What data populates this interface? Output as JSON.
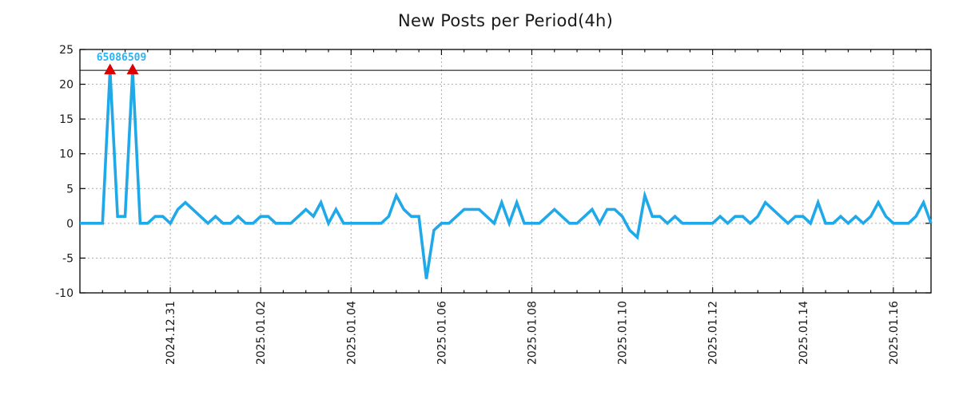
{
  "title": "New Posts per Period(4h)",
  "chart_data": {
    "type": "line",
    "title": "New Posts per Period(4h)",
    "x_start": "2024.12.29 00:00",
    "period_hours": 4,
    "x_total_days": 18.8333,
    "values": [
      0,
      0,
      0,
      0,
      22,
      1,
      1,
      22,
      0,
      0,
      1,
      1,
      0,
      2,
      3,
      2,
      1,
      0,
      1,
      0,
      0,
      1,
      0,
      0,
      1,
      1,
      0,
      0,
      0,
      1,
      2,
      1,
      3,
      0,
      2,
      0,
      0,
      0,
      0,
      0,
      0,
      1,
      4,
      2,
      1,
      1,
      -8,
      -1,
      0,
      0,
      1,
      2,
      2,
      2,
      1,
      0,
      3,
      0,
      3,
      0,
      0,
      0,
      1,
      2,
      1,
      0,
      0,
      1,
      2,
      0,
      2,
      2,
      1,
      -1,
      -2,
      4,
      1,
      1,
      0,
      1,
      0,
      0,
      0,
      0,
      0,
      1,
      0,
      1,
      1,
      0,
      1,
      3,
      2,
      1,
      0,
      1,
      1,
      0,
      3,
      0,
      0,
      1,
      0,
      1,
      0,
      1,
      3,
      1,
      0,
      0,
      0,
      1,
      3,
      0
    ],
    "ylim": [
      -10,
      25
    ],
    "yticks": [
      -10,
      -5,
      0,
      5,
      10,
      15,
      20,
      25
    ],
    "ytick_labels": [
      "-10",
      "-5",
      "0",
      "5",
      "10",
      "15",
      "20",
      "25"
    ],
    "xticks": [
      {
        "label": "2024.12.31",
        "day": 2
      },
      {
        "label": "2025.01.02",
        "day": 4
      },
      {
        "label": "2025.01.04",
        "day": 6
      },
      {
        "label": "2025.01.06",
        "day": 8
      },
      {
        "label": "2025.01.08",
        "day": 10
      },
      {
        "label": "2025.01.10",
        "day": 12
      },
      {
        "label": "2025.01.12",
        "day": 14
      },
      {
        "label": "2025.01.14",
        "day": 16
      },
      {
        "label": "2025.01.16",
        "day": 18
      }
    ],
    "minor_xtick_hours": 12,
    "grid": true,
    "legend_position": "none",
    "threshold_line": 22,
    "markers": [
      {
        "index": 4,
        "value": 22,
        "shape": "triangle-up"
      },
      {
        "index": 7,
        "value": 22,
        "shape": "triangle-up"
      }
    ],
    "annotation": {
      "text": "65086509"
    },
    "colors": {
      "line": "#1fa9e8",
      "annotation": "#2bb3f2",
      "marker": "#dc0000",
      "grid": "#aaaaaa",
      "axis": "#000000",
      "threshold": "#000000",
      "title": "#1a1a1a",
      "tick_label": "#1a1a1a"
    }
  }
}
